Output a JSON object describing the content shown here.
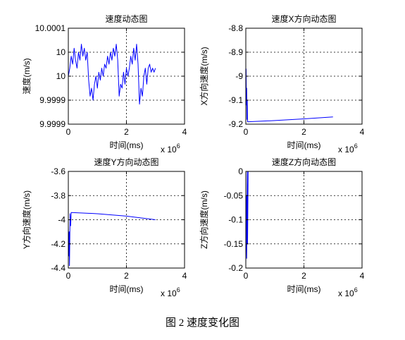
{
  "figure_caption": "图 2 速度变化图",
  "chart_data": [
    {
      "type": "line",
      "title": "速度动态图",
      "xlabel": "时间(ms)",
      "ylabel": "速度(m/s)",
      "x_multiplier": "x 10^6",
      "xlim": [
        0,
        4
      ],
      "ylim": [
        9.99986,
        10.0001
      ],
      "xticks": [
        "0",
        "2",
        "4"
      ],
      "yticks": [
        {
          "v": 10.0001,
          "label": "10.0001"
        },
        {
          "v": 10.00004,
          "label": "10"
        },
        {
          "v": 9.99998,
          "label": "10"
        },
        {
          "v": 9.99992,
          "label": "9.9999"
        },
        {
          "v": 9.99986,
          "label": "9.9999"
        }
      ],
      "grid": true,
      "color": "#0000ff",
      "series": [
        {
          "x": [
            0.0,
            0.05,
            0.1,
            0.15,
            0.2,
            0.25,
            0.3,
            0.35,
            0.4,
            0.45,
            0.5,
            0.55,
            0.6,
            0.65,
            0.7,
            0.75,
            0.8,
            0.85,
            0.9,
            0.95,
            1.0,
            1.05,
            1.1,
            1.15,
            1.2,
            1.25,
            1.3,
            1.35,
            1.4,
            1.45,
            1.5,
            1.55,
            1.6,
            1.65,
            1.7,
            1.75,
            1.8,
            1.85,
            1.9,
            1.95,
            2.0,
            2.05,
            2.1,
            2.15,
            2.2,
            2.25,
            2.3,
            2.35,
            2.4,
            2.45,
            2.5,
            2.55,
            2.6,
            2.65,
            2.7,
            2.75,
            2.8,
            2.85,
            2.9,
            2.95,
            3.0
          ],
          "y": [
            9.99998,
            10.0,
            10.00003,
            10.00001,
            10.00005,
            10.00002,
            10.0,
            10.00004,
            10.00002,
            10.00006,
            10.00003,
            10.00005,
            10.00002,
            10.00004,
            9.99997,
            9.99993,
            9.99995,
            9.99992,
            9.99996,
            9.99998,
            9.99995,
            9.99999,
            9.99997,
            10.0,
            9.99998,
            10.00001,
            10.0,
            10.00003,
            10.00001,
            10.00004,
            10.00002,
            10.00005,
            10.00003,
            10.00006,
            10.00002,
            9.99993,
            9.99996,
            9.99995,
            9.99999,
            9.99996,
            10.0,
            9.99998,
            10.0,
            10.00003,
            10.00001,
            10.00005,
            10.00002,
            10.00006,
            10.00001,
            9.99991,
            9.99995,
            9.99993,
            9.99998,
            10.0,
            9.99996,
            10.0,
            10.00001,
            9.99999,
            10.0,
            9.99999,
            10.0
          ]
        }
      ]
    },
    {
      "type": "line",
      "title": "速度X方向动态图",
      "xlabel": "时间(ms)",
      "ylabel": "X方向速度(m/s)",
      "x_multiplier": "x 10^6",
      "xlim": [
        0,
        4
      ],
      "ylim": [
        -9.2,
        -8.8
      ],
      "xticks": [
        "0",
        "2",
        "4"
      ],
      "yticks": [
        {
          "v": -8.8,
          "label": "-8.8"
        },
        {
          "v": -8.9,
          "label": "-8.9"
        },
        {
          "v": -9.0,
          "label": "-9"
        },
        {
          "v": -9.1,
          "label": "-9.1"
        },
        {
          "v": -9.2,
          "label": "-9.2"
        }
      ],
      "grid": true,
      "color": "#0000ff",
      "series": [
        {
          "x": [
            0.0,
            0.01,
            0.02,
            0.03,
            0.04,
            0.05,
            0.06,
            0.08,
            1.0,
            2.0,
            3.0
          ],
          "y": [
            -9.0,
            -8.97,
            -9.12,
            -9.05,
            -9.18,
            -9.1,
            -9.19,
            -9.19,
            -9.185,
            -9.178,
            -9.17
          ]
        }
      ]
    },
    {
      "type": "line",
      "title": "速度Y方向动态图",
      "xlabel": "时间(ms)",
      "ylabel": "Y方向速度(m/s)",
      "x_multiplier": "x 10^6",
      "xlim": [
        0,
        4
      ],
      "ylim": [
        -4.4,
        -3.6
      ],
      "xticks": [
        "0",
        "2",
        "4"
      ],
      "yticks": [
        {
          "v": -3.6,
          "label": "-3.6"
        },
        {
          "v": -3.8,
          "label": "-3.8"
        },
        {
          "v": -4.0,
          "label": "-4"
        },
        {
          "v": -4.2,
          "label": "-4.2"
        },
        {
          "v": -4.4,
          "label": "-4.4"
        }
      ],
      "grid": true,
      "color": "#0000ff",
      "series": [
        {
          "x": [
            0.0,
            0.02,
            0.03,
            0.04,
            0.05,
            0.06,
            0.08,
            0.1,
            1.0,
            2.0,
            3.0
          ],
          "y": [
            -4.05,
            -4.3,
            -4.1,
            -4.38,
            -4.2,
            -3.95,
            -4.05,
            -3.94,
            -3.95,
            -3.97,
            -4.0
          ]
        }
      ]
    },
    {
      "type": "line",
      "title": "速度Z方向动态图",
      "xlabel": "时间(ms)",
      "ylabel": "Z方向速度(m/s)",
      "x_multiplier": "x 10^6",
      "xlim": [
        0,
        4
      ],
      "ylim": [
        -0.2,
        0
      ],
      "xticks": [
        "0",
        "2",
        "4"
      ],
      "yticks": [
        {
          "v": 0,
          "label": "0"
        },
        {
          "v": -0.05,
          "label": "-0.05"
        },
        {
          "v": -0.1,
          "label": "-0.1"
        },
        {
          "v": -0.15,
          "label": "-0.15"
        },
        {
          "v": -0.2,
          "label": "-0.2"
        }
      ],
      "grid": true,
      "color": "#0000ff",
      "series": [
        {
          "x": [
            0.0,
            0.02,
            0.03,
            0.05,
            0.06,
            0.08,
            0.1
          ],
          "y": [
            -0.19,
            -0.05,
            -0.18,
            0.0,
            -0.15,
            0.0,
            0.0
          ]
        }
      ]
    }
  ]
}
